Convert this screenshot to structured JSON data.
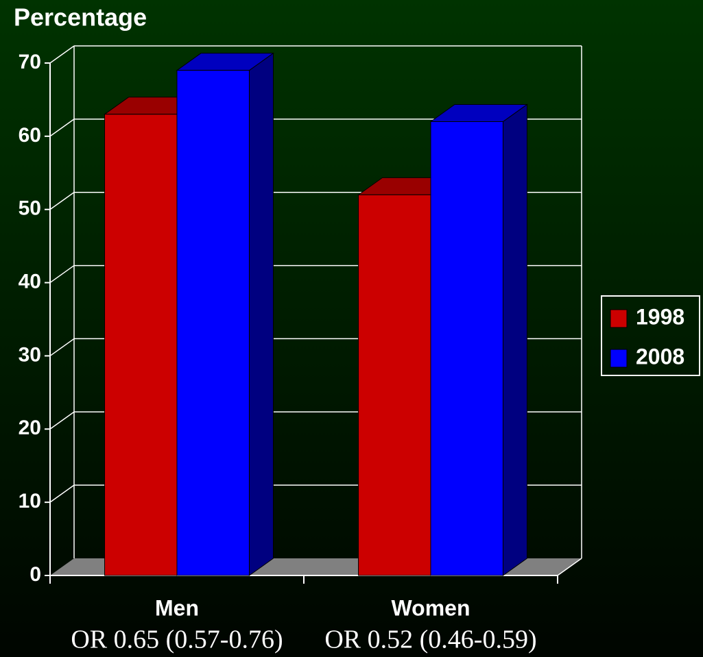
{
  "chart_data": {
    "type": "bar3d",
    "title": "Percentage",
    "categories": [
      "Men",
      "Women"
    ],
    "annotations": [
      "OR 0.65 (0.57-0.76)",
      "OR 0.52 (0.46-0.59)"
    ],
    "series": [
      {
        "name": "1998",
        "color": "#cc0000",
        "values": [
          63,
          52
        ]
      },
      {
        "name": "2008",
        "color": "#0000ff",
        "values": [
          69,
          62
        ]
      }
    ],
    "ylim": [
      0,
      70
    ],
    "yticks": [
      0,
      10,
      20,
      30,
      40,
      50,
      60,
      70
    ],
    "grid": true,
    "legend": "right"
  }
}
